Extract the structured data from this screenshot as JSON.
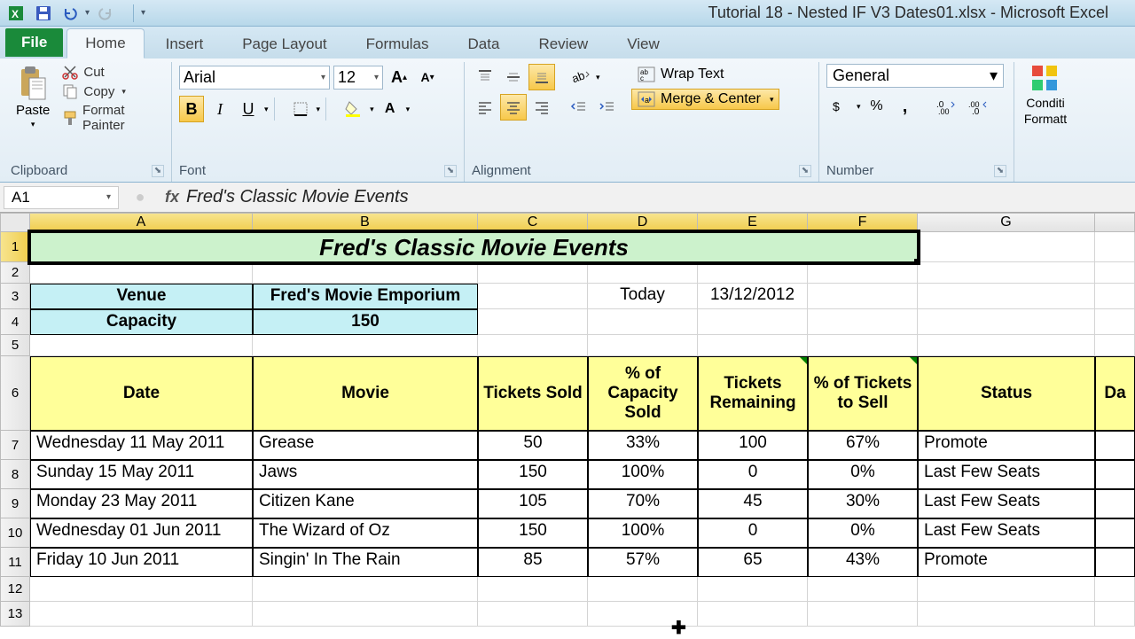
{
  "app": {
    "title": "Tutorial 18 - Nested IF V3 Dates01.xlsx - Microsoft Excel"
  },
  "ribbon": {
    "tabs": [
      "File",
      "Home",
      "Insert",
      "Page Layout",
      "Formulas",
      "Data",
      "Review",
      "View"
    ],
    "active_tab": "Home",
    "clipboard": {
      "paste": "Paste",
      "cut": "Cut",
      "copy": "Copy",
      "format_painter": "Format Painter",
      "group_label": "Clipboard"
    },
    "font": {
      "name": "Arial",
      "size": "12",
      "group_label": "Font"
    },
    "alignment": {
      "wrap_text": "Wrap Text",
      "merge_center": "Merge & Center",
      "group_label": "Alignment"
    },
    "number": {
      "format": "General",
      "group_label": "Number"
    },
    "styles": {
      "cond_fmt_line1": "Conditi",
      "cond_fmt_line2": "Formatt"
    }
  },
  "formula_bar": {
    "name_box": "A1",
    "formula": "Fred's Classic Movie Events"
  },
  "sheet": {
    "columns": [
      "A",
      "B",
      "C",
      "D",
      "E",
      "F",
      "G"
    ],
    "last_col_partial": "Da",
    "title_merged": "Fred's Classic Movie Events",
    "venue_label": "Venue",
    "venue_value": "Fred's Movie Emporium",
    "capacity_label": "Capacity",
    "capacity_value": "150",
    "today_label": "Today",
    "today_value": "13/12/2012",
    "headers": {
      "date": "Date",
      "movie": "Movie",
      "tickets_sold": "Tickets Sold",
      "pct_capacity": "% of Capacity Sold",
      "tickets_remaining": "Tickets Remaining",
      "pct_to_sell": "% of Tickets to Sell",
      "status": "Status",
      "partial": "Da"
    },
    "data": [
      {
        "date": "Wednesday 11 May 2011",
        "movie": "Grease",
        "sold": "50",
        "pct_cap": "33%",
        "remain": "100",
        "pct_sell": "67%",
        "status": "Promote"
      },
      {
        "date": "Sunday 15 May 2011",
        "movie": "Jaws",
        "sold": "150",
        "pct_cap": "100%",
        "remain": "0",
        "pct_sell": "0%",
        "status": "Last Few Seats"
      },
      {
        "date": "Monday 23 May 2011",
        "movie": "Citizen Kane",
        "sold": "105",
        "pct_cap": "70%",
        "remain": "45",
        "pct_sell": "30%",
        "status": "Last Few Seats"
      },
      {
        "date": "Wednesday 01 Jun 2011",
        "movie": "The Wizard of Oz",
        "sold": "150",
        "pct_cap": "100%",
        "remain": "0",
        "pct_sell": "0%",
        "status": "Last Few Seats"
      },
      {
        "date": "Friday 10 Jun 2011",
        "movie": "Singin' In The Rain",
        "sold": "85",
        "pct_cap": "57%",
        "remain": "65",
        "pct_sell": "43%",
        "status": "Promote"
      }
    ],
    "colors": {
      "title_bg": "#ccf2cc",
      "blue_bg": "#c5f0f5",
      "header_bg": "#ffff99",
      "selected_colhdr": "#f0cd4d"
    }
  }
}
